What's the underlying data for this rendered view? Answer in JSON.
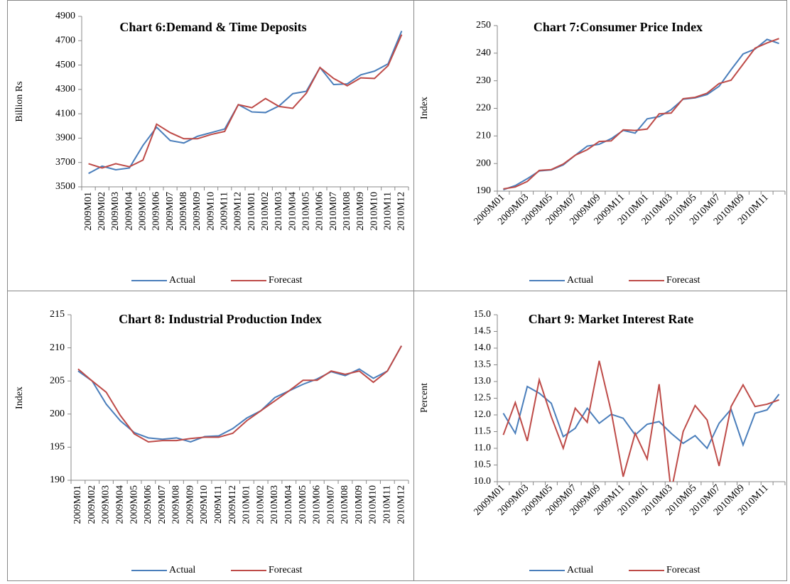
{
  "chart_data": [
    {
      "type": "line",
      "title": "Chart 6:Demand & Time Deposits",
      "y_label": "Billion Rs",
      "categories": [
        "2009M01",
        "2009M02",
        "2009M03",
        "2009M04",
        "2009M05",
        "2009M06",
        "2009M07",
        "2009M08",
        "2009M09",
        "2009M10",
        "2009M11",
        "2009M12",
        "2010M01",
        "2010M02",
        "2010M03",
        "2010M04",
        "2010M05",
        "2010M06",
        "2010M07",
        "2010M08",
        "2010M09",
        "2010M10",
        "2010M11",
        "2010M12"
      ],
      "series": [
        {
          "name": "Actual",
          "color": "#4a7ebb",
          "values": [
            3610,
            3670,
            3640,
            3655,
            3840,
            3990,
            3880,
            3860,
            3915,
            3945,
            3975,
            4175,
            4115,
            4110,
            4165,
            4265,
            4285,
            4480,
            4340,
            4345,
            4420,
            4450,
            4510,
            4780
          ]
        },
        {
          "name": "Forecast",
          "color": "#be4b48",
          "values": [
            3690,
            3655,
            3690,
            3665,
            3720,
            4015,
            3945,
            3895,
            3895,
            3930,
            3955,
            4175,
            4150,
            4225,
            4160,
            4145,
            4270,
            4480,
            4390,
            4330,
            4395,
            4390,
            4495,
            4750
          ]
        }
      ],
      "ylim": [
        3500,
        4900
      ],
      "yticks": [
        3500,
        3700,
        3900,
        4100,
        4300,
        4500,
        4700,
        4900
      ],
      "grid": false,
      "legend": "bottom"
    },
    {
      "type": "line",
      "title": "Chart 7:Consumer Price Index",
      "y_label": "Index",
      "categories": [
        "2009M01",
        null,
        "2009M03",
        null,
        "2009M05",
        null,
        "2009M07",
        null,
        "2009M09",
        null,
        "2009M11",
        null,
        "2010M01",
        null,
        "2010M03",
        null,
        "2010M05",
        null,
        "2010M07",
        null,
        "2010M09",
        null,
        "2010M11",
        null
      ],
      "series": [
        {
          "name": "Actual",
          "color": "#4a7ebb",
          "values": [
            190.5,
            192,
            194.5,
            197.3,
            197.7,
            199.5,
            203,
            206.3,
            207,
            209,
            212,
            211,
            216.2,
            217,
            219.5,
            223.3,
            223.8,
            225,
            228,
            234,
            239.7,
            241.5,
            245,
            243.5
          ]
        },
        {
          "name": "Forecast",
          "color": "#be4b48",
          "values": [
            190.8,
            191.5,
            193.5,
            197.5,
            197.8,
            199.8,
            203,
            205,
            208,
            208.2,
            212.2,
            212,
            212.5,
            218,
            218.3,
            223.5,
            224,
            225.5,
            229,
            230.2,
            236,
            241.8,
            243.7,
            245.3
          ]
        }
      ],
      "ylim": [
        190,
        250
      ],
      "yticks": [
        190,
        200,
        210,
        220,
        230,
        240,
        250
      ],
      "grid": false,
      "legend": "bottom"
    },
    {
      "type": "line",
      "title": "Chart 8: Industrial Production Index",
      "y_label": "Index",
      "categories": [
        "2009M01",
        "2009M02",
        "2009M03",
        "2009M04",
        "2009M05",
        "2009M06",
        "2009M07",
        "2009M08",
        "2009M09",
        "2009M10",
        "2009M11",
        "2009M12",
        "2010M01",
        "2010M02",
        "2010M03",
        "2010M04",
        "2010M05",
        "2010M06",
        "2010M07",
        "2010M08",
        "2010M09",
        "2010M10",
        "2010M11",
        "2010M12"
      ],
      "series": [
        {
          "name": "Actual",
          "color": "#4a7ebb",
          "values": [
            206.5,
            205,
            201.5,
            199,
            197.2,
            196.4,
            196.2,
            196.4,
            195.8,
            196.6,
            196.7,
            197.8,
            199.4,
            200.5,
            202.5,
            203.5,
            204.5,
            205.3,
            206.4,
            205.8,
            206.8,
            205.4,
            206.5,
            210.3
          ]
        },
        {
          "name": "Forecast",
          "color": "#be4b48",
          "values": [
            206.8,
            205,
            203.3,
            199.8,
            197,
            195.8,
            196,
            196,
            196.3,
            196.5,
            196.5,
            197.1,
            199,
            200.5,
            202,
            203.5,
            205.1,
            205.1,
            206.5,
            206,
            206.5,
            204.8,
            206.5,
            210.3
          ]
        }
      ],
      "ylim": [
        190,
        215
      ],
      "yticks": [
        190,
        195,
        200,
        205,
        210,
        215
      ],
      "grid": false,
      "legend": "bottom"
    },
    {
      "type": "line",
      "title": "Chart 9: Market Interest Rate",
      "y_label": "Percent",
      "categories": [
        "2009M01",
        null,
        "2009M03",
        null,
        "2009M05",
        null,
        "2009M07",
        null,
        "2009M09",
        null,
        "2009M11",
        null,
        "2010M01",
        null,
        "2010M03",
        null,
        "2010M05",
        null,
        "2010M07",
        null,
        "2010M09",
        null,
        "2010M11",
        null
      ],
      "series": [
        {
          "name": "Actual",
          "color": "#4a7ebb",
          "values": [
            12.05,
            11.45,
            12.85,
            12.65,
            12.35,
            11.35,
            11.6,
            12.2,
            11.75,
            12.02,
            11.9,
            11.4,
            11.72,
            11.8,
            11.45,
            11.15,
            11.38,
            11.0,
            11.75,
            12.17,
            11.1,
            12.05,
            12.15,
            12.62
          ]
        },
        {
          "name": "Forecast",
          "color": "#be4b48",
          "values": [
            11.4,
            12.37,
            11.22,
            13.05,
            11.95,
            11.0,
            12.2,
            11.78,
            13.62,
            12.1,
            10.15,
            11.45,
            10.68,
            12.92,
            9.7,
            11.5,
            12.28,
            11.85,
            10.47,
            12.25,
            12.9,
            12.25,
            12.32,
            12.45
          ]
        }
      ],
      "ylim": [
        10,
        15
      ],
      "yticks": [
        {
          "value": 10,
          "label": "10.0"
        },
        {
          "value": 10.5,
          "label": "10.5"
        },
        {
          "value": 11,
          "label": "11.0"
        },
        {
          "value": 11.5,
          "label": "11.5"
        },
        {
          "value": 12,
          "label": "12.0"
        },
        {
          "value": 12.5,
          "label": "12.5"
        },
        {
          "value": 13,
          "label": "13.0"
        },
        {
          "value": 13.5,
          "label": "13.5"
        },
        {
          "value": 14,
          "label": "14.0"
        },
        {
          "value": 14.5,
          "label": "14.5"
        },
        {
          "value": 15,
          "label": "15.0"
        }
      ],
      "grid": false,
      "legend": "bottom"
    }
  ]
}
